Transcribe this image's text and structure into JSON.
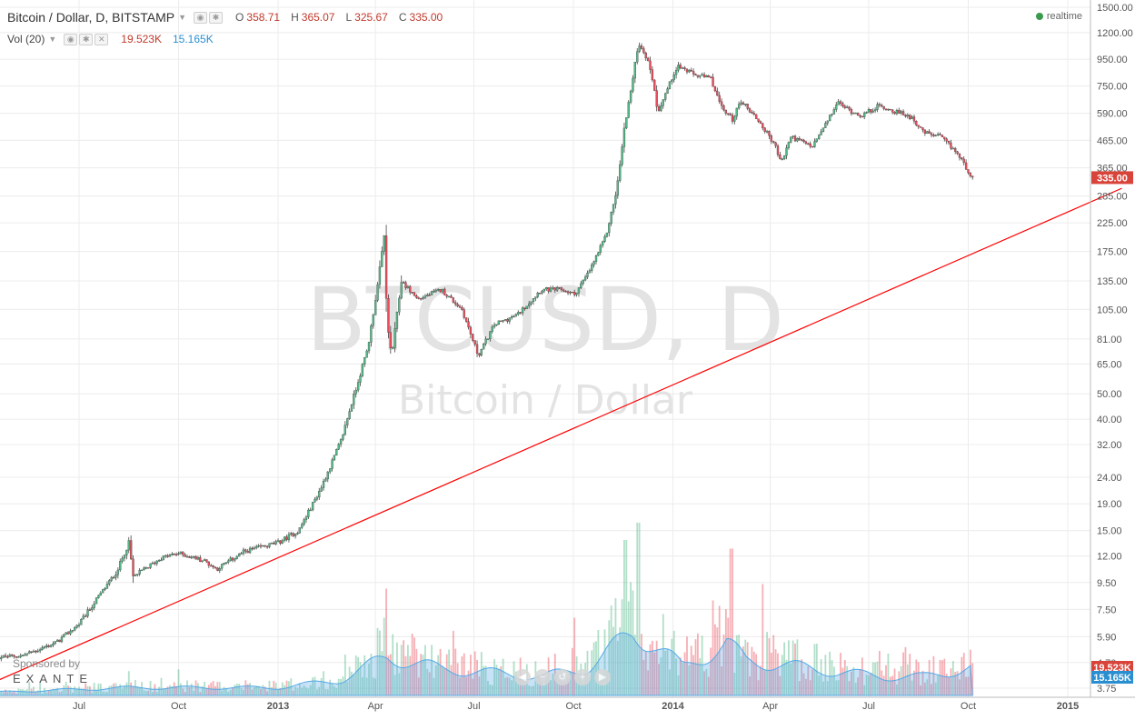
{
  "legend": {
    "symbol": "Bitcoin / Dollar, D, BITSTAMP",
    "open_label": "O",
    "open": "358.71",
    "high_label": "H",
    "high": "365.07",
    "low_label": "L",
    "low": "325.67",
    "close_label": "C",
    "close": "335.00",
    "vol_label": "Vol (20)",
    "vol_value": "19.523K",
    "vol_ma": "15.165K"
  },
  "realtime_label": "realtime",
  "watermark": {
    "symbol": "BTCUSD, D",
    "description": "Bitcoin / Dollar"
  },
  "sponsor": {
    "label": "Sponsored by",
    "brand": "EXANTE"
  },
  "controls": [
    "◀",
    "−",
    "↺",
    "+",
    "▶"
  ],
  "colors": {
    "up": "#53b987",
    "down": "#eb4d5c",
    "trend": "#ff0000",
    "last_price": "#d9443a",
    "volume_ma": "#54a9e6"
  },
  "chart_data": {
    "type": "candlestick",
    "scale": "log",
    "price_ticks": [
      "1500.00",
      "1200.00",
      "950.00",
      "750.00",
      "590.00",
      "465.00",
      "365.00",
      "285.00",
      "225.00",
      "175.00",
      "135.00",
      "105.00",
      "81.00",
      "65.00",
      "50.00",
      "40.00",
      "32.00",
      "24.00",
      "19.00",
      "15.00",
      "12.00",
      "9.50",
      "7.50",
      "5.90",
      "4.70",
      "3.75"
    ],
    "x_ticks": [
      "Jul",
      "Oct",
      "2013",
      "Apr",
      "Jul",
      "Oct",
      "2014",
      "Apr",
      "Jul",
      "Oct",
      "2015"
    ],
    "x_tick_dates": [
      "2012-07-01",
      "2012-10-01",
      "2013-01-01",
      "2013-04-01",
      "2013-07-01",
      "2013-10-01",
      "2014-01-01",
      "2014-04-01",
      "2014-07-01",
      "2014-10-01",
      "2015-01-01"
    ],
    "start_date": "2012-04-10",
    "end_date": "2014-10-05",
    "price_anchors": [
      [
        "2012-04-10",
        4.9
      ],
      [
        "2012-05-10",
        5.0
      ],
      [
        "2012-06-10",
        5.6
      ],
      [
        "2012-07-01",
        6.6
      ],
      [
        "2012-07-20",
        8.5
      ],
      [
        "2012-08-05",
        10.5
      ],
      [
        "2012-08-16",
        13.5
      ],
      [
        "2012-08-20",
        10.0
      ],
      [
        "2012-09-15",
        11.8
      ],
      [
        "2012-10-01",
        12.3
      ],
      [
        "2012-10-25",
        11.5
      ],
      [
        "2012-11-05",
        10.7
      ],
      [
        "2012-12-01",
        12.5
      ],
      [
        "2013-01-01",
        13.5
      ],
      [
        "2013-01-20",
        15.0
      ],
      [
        "2013-02-10",
        22.0
      ],
      [
        "2013-02-28",
        33.0
      ],
      [
        "2013-03-10",
        46.0
      ],
      [
        "2013-03-25",
        75.0
      ],
      [
        "2013-04-03",
        130.0
      ],
      [
        "2013-04-09",
        200.0
      ],
      [
        "2013-04-12",
        90.0
      ],
      [
        "2013-04-16",
        70.0
      ],
      [
        "2013-04-25",
        135.0
      ],
      [
        "2013-05-10",
        115.0
      ],
      [
        "2013-06-01",
        125.0
      ],
      [
        "2013-06-20",
        105.0
      ],
      [
        "2013-07-05",
        70.0
      ],
      [
        "2013-07-20",
        92.0
      ],
      [
        "2013-08-10",
        100.0
      ],
      [
        "2013-09-01",
        125.0
      ],
      [
        "2013-09-20",
        125.0
      ],
      [
        "2013-10-02",
        120.0
      ],
      [
        "2013-10-15",
        145.0
      ],
      [
        "2013-10-31",
        200.0
      ],
      [
        "2013-11-10",
        300.0
      ],
      [
        "2013-11-18",
        550.0
      ],
      [
        "2013-11-25",
        800.0
      ],
      [
        "2013-11-30",
        1100.0
      ],
      [
        "2013-12-06",
        1000.0
      ],
      [
        "2013-12-12",
        850.0
      ],
      [
        "2013-12-18",
        600.0
      ],
      [
        "2013-12-25",
        700.0
      ],
      [
        "2014-01-05",
        900.0
      ],
      [
        "2014-01-20",
        830.0
      ],
      [
        "2014-02-05",
        800.0
      ],
      [
        "2014-02-15",
        620.0
      ],
      [
        "2014-02-25",
        560.0
      ],
      [
        "2014-03-05",
        660.0
      ],
      [
        "2014-03-20",
        560.0
      ],
      [
        "2014-04-05",
        450.0
      ],
      [
        "2014-04-11",
        380.0
      ],
      [
        "2014-04-20",
        480.0
      ],
      [
        "2014-05-10",
        440.0
      ],
      [
        "2014-05-25",
        560.0
      ],
      [
        "2014-06-02",
        650.0
      ],
      [
        "2014-06-15",
        600.0
      ],
      [
        "2014-06-25",
        580.0
      ],
      [
        "2014-07-10",
        630.0
      ],
      [
        "2014-07-25",
        600.0
      ],
      [
        "2014-08-10",
        570.0
      ],
      [
        "2014-08-20",
        500.0
      ],
      [
        "2014-09-05",
        480.0
      ],
      [
        "2014-09-20",
        420.0
      ],
      [
        "2014-10-05",
        335.0
      ]
    ],
    "trendline": [
      [
        "2012-04-10",
        3.9
      ],
      [
        "2015-02-20",
        305.0
      ]
    ],
    "volume_spikes": [
      [
        "2013-04-10",
        0.25
      ],
      [
        "2013-11-18",
        0.9
      ],
      [
        "2013-11-30",
        1.0
      ],
      [
        "2014-02-24",
        0.85
      ],
      [
        "2014-02-07",
        0.55
      ],
      [
        "2013-10-02",
        0.45
      ]
    ],
    "volume_ma_anchors": [
      [
        "2012-04-10",
        0.02
      ],
      [
        "2012-08-16",
        0.05
      ],
      [
        "2013-01-01",
        0.05
      ],
      [
        "2013-03-01",
        0.1
      ],
      [
        "2013-04-12",
        0.25
      ],
      [
        "2013-06-01",
        0.17
      ],
      [
        "2013-07-10",
        0.15
      ],
      [
        "2013-09-01",
        0.12
      ],
      [
        "2013-10-15",
        0.18
      ],
      [
        "2013-11-25",
        0.4
      ],
      [
        "2013-12-12",
        0.35
      ],
      [
        "2014-01-10",
        0.18
      ],
      [
        "2014-02-20",
        0.33
      ],
      [
        "2014-03-10",
        0.22
      ],
      [
        "2014-04-10",
        0.2
      ],
      [
        "2014-05-10",
        0.17
      ],
      [
        "2014-06-05",
        0.15
      ],
      [
        "2014-07-15",
        0.12
      ],
      [
        "2014-08-20",
        0.12
      ],
      [
        "2014-10-05",
        0.18
      ]
    ],
    "last_price": "335.00",
    "volume_ma_label": "15.165K",
    "volume_axis_label": "19.523K",
    "grid": true,
    "legend_position": "top-left"
  }
}
